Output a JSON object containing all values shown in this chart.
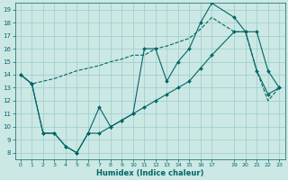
{
  "xlabel": "Humidex (Indice chaleur)",
  "bg_color": "#cce8e4",
  "grid_color": "#99cccc",
  "line_color": "#006666",
  "xlim": [
    -0.5,
    23.5
  ],
  "ylim": [
    7.5,
    19.5
  ],
  "xticks": [
    0,
    1,
    2,
    3,
    4,
    5,
    6,
    7,
    8,
    9,
    10,
    11,
    12,
    13,
    14,
    15,
    16,
    17,
    19,
    20,
    21,
    22,
    23
  ],
  "yticks": [
    8,
    9,
    10,
    11,
    12,
    13,
    14,
    15,
    16,
    17,
    18,
    19
  ],
  "series": [
    {
      "x": [
        0,
        1,
        2,
        3,
        4,
        5,
        6,
        7,
        8,
        9,
        10,
        11,
        12,
        13,
        14,
        15,
        16,
        17,
        19,
        20,
        21,
        22,
        23
      ],
      "y": [
        14,
        13.3,
        13.5,
        13.7,
        14.0,
        14.3,
        14.5,
        14.7,
        15.0,
        15.2,
        15.5,
        15.5,
        16.0,
        16.2,
        16.5,
        16.8,
        17.5,
        18.4,
        17.3,
        17.3,
        14.3,
        12.0,
        13.0
      ],
      "marker": false
    },
    {
      "x": [
        0,
        1,
        2,
        3,
        4,
        5,
        6,
        7,
        8,
        9,
        10,
        11,
        12,
        13,
        14,
        15,
        16,
        17,
        19,
        20,
        21,
        22,
        23
      ],
      "y": [
        14,
        13.3,
        9.5,
        9.5,
        8.5,
        8.0,
        9.5,
        11.5,
        10.0,
        10.5,
        11.0,
        16.0,
        16.0,
        13.5,
        15.0,
        16.0,
        18.0,
        19.5,
        18.4,
        17.3,
        17.3,
        14.3,
        13.0
      ],
      "marker": true
    },
    {
      "x": [
        0,
        1,
        2,
        3,
        4,
        5,
        6,
        7,
        8,
        9,
        10,
        11,
        12,
        13,
        14,
        15,
        16,
        17,
        19,
        20,
        21,
        22,
        23
      ],
      "y": [
        14,
        13.3,
        9.5,
        9.5,
        8.5,
        8.0,
        9.5,
        9.5,
        10.0,
        10.5,
        11.0,
        11.5,
        12.0,
        12.5,
        13.0,
        13.5,
        14.5,
        15.5,
        17.3,
        17.3,
        14.3,
        12.5,
        13.0
      ],
      "marker": true
    }
  ]
}
